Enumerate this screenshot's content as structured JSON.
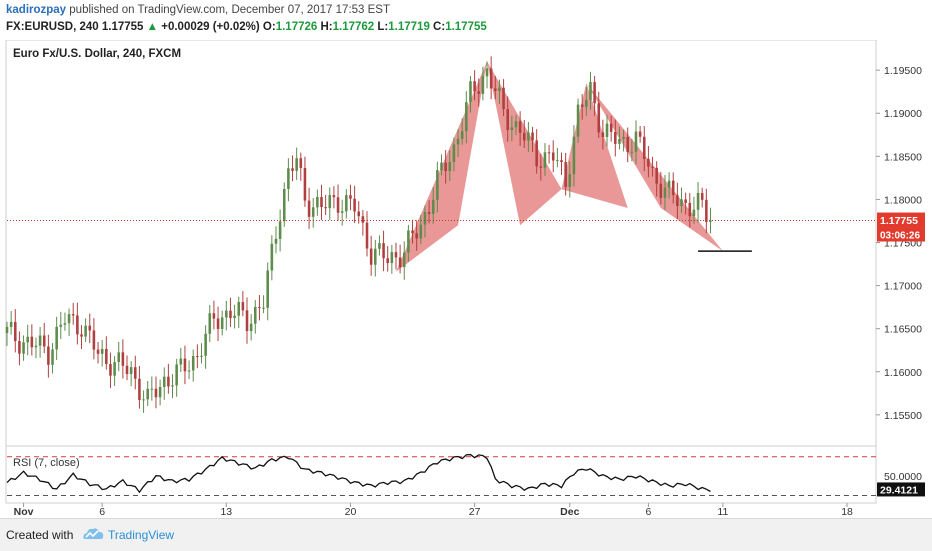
{
  "header": {
    "user": "kadirozpay",
    "published_text": "published on TradingView.com, December 07, 2017 17:53 EST",
    "symbol": "FX:EURUSD, 240",
    "last": "1.17755",
    "change_arrow": "▲",
    "change": "+0.00029 (+0.02%)",
    "o_label": "O:",
    "o": "1.17726",
    "h_label": "H:",
    "h": "1.17762",
    "l_label": "L:",
    "l": "1.17719",
    "c_label": "C:",
    "c": "1.17755"
  },
  "footer": {
    "created_with": "Created with",
    "brand": "TradingView",
    "logo_icon": "tradingview-cloud-icon"
  },
  "colors": {
    "up": "#5d8c4c",
    "down": "#b0403f",
    "pattern_fill": "#e58585",
    "price_line": "#c0392b",
    "rsi_line": "#111111",
    "rsi_band": "#d33c3c",
    "label_red": "#e23b2e"
  },
  "chart_data": {
    "type": "candlestick",
    "title": "Euro Fx/U.S. Dollar, 240, FXCM",
    "y_ticks": [
      "1.19500",
      "1.19000",
      "1.18500",
      "1.18000",
      "1.17500",
      "1.17000",
      "1.16500",
      "1.16000",
      "1.15500"
    ],
    "y_tick_values": [
      1.195,
      1.19,
      1.185,
      1.18,
      1.175,
      1.17,
      1.165,
      1.16,
      1.155
    ],
    "ylim": [
      1.1515,
      1.1985
    ],
    "x_ticks": [
      {
        "label": "Nov",
        "index": 4
      },
      {
        "label": "6",
        "index": 23
      },
      {
        "label": "13",
        "index": 53
      },
      {
        "label": "20",
        "index": 83
      },
      {
        "label": "27",
        "index": 113
      },
      {
        "label": "Dec",
        "index": 136
      },
      {
        "label": "6",
        "index": 155
      },
      {
        "label": "11",
        "index": 173
      },
      {
        "label": "18",
        "index": 203
      }
    ],
    "xlim": [
      0,
      210
    ],
    "current_price": {
      "value": 1.17755,
      "label": "1.17755",
      "countdown": "03:06:26"
    },
    "target_line": {
      "value": 1.174,
      "from_index": 167,
      "to_index": 180
    },
    "harmonic_pattern": {
      "legs": [
        [
          {
            "i": 94,
            "p": 1.1716
          },
          {
            "i": 116,
            "p": 1.196
          },
          {
            "i": 109,
            "p": 1.177
          }
        ],
        [
          {
            "i": 116,
            "p": 1.196
          },
          {
            "i": 134,
            "p": 1.1812
          },
          {
            "i": 124,
            "p": 1.177
          }
        ],
        [
          {
            "i": 134,
            "p": 1.1812
          },
          {
            "i": 140,
            "p": 1.1935
          },
          {
            "i": 150,
            "p": 1.179
          }
        ],
        [
          {
            "i": 140,
            "p": 1.1935
          },
          {
            "i": 173,
            "p": 1.174
          },
          {
            "i": 158,
            "p": 1.179
          }
        ]
      ]
    },
    "anchors": [
      [
        0,
        1.1645
      ],
      [
        4,
        1.1635
      ],
      [
        10,
        1.1625
      ],
      [
        14,
        1.166
      ],
      [
        18,
        1.1655
      ],
      [
        22,
        1.162
      ],
      [
        26,
        1.161
      ],
      [
        30,
        1.16
      ],
      [
        34,
        1.1565
      ],
      [
        38,
        1.159
      ],
      [
        42,
        1.16
      ],
      [
        46,
        1.162
      ],
      [
        50,
        1.166
      ],
      [
        54,
        1.167
      ],
      [
        58,
        1.166
      ],
      [
        62,
        1.168
      ],
      [
        66,
        1.179
      ],
      [
        68,
        1.183
      ],
      [
        70,
        1.1845
      ],
      [
        72,
        1.18
      ],
      [
        76,
        1.179
      ],
      [
        80,
        1.18
      ],
      [
        84,
        1.179
      ],
      [
        88,
        1.174
      ],
      [
        92,
        1.173
      ],
      [
        96,
        1.174
      ],
      [
        100,
        1.177
      ],
      [
        104,
        1.182
      ],
      [
        108,
        1.186
      ],
      [
        112,
        1.192
      ],
      [
        116,
        1.195
      ],
      [
        120,
        1.19
      ],
      [
        124,
        1.188
      ],
      [
        128,
        1.185
      ],
      [
        132,
        1.185
      ],
      [
        135,
        1.182
      ],
      [
        138,
        1.19
      ],
      [
        141,
        1.1925
      ],
      [
        144,
        1.188
      ],
      [
        148,
        1.1865
      ],
      [
        152,
        1.187
      ],
      [
        156,
        1.183
      ],
      [
        160,
        1.1805
      ],
      [
        164,
        1.1795
      ],
      [
        168,
        1.179
      ],
      [
        170,
        1.1776
      ]
    ],
    "rsi": {
      "label": "RSI (7, close)",
      "ylim": [
        10,
        95
      ],
      "upper_band": 80,
      "lower_band": 20,
      "right_labels": [
        {
          "text": "50.0000",
          "value": 50
        }
      ],
      "current": {
        "value": 29.4121,
        "label": "29.4121"
      },
      "anchors": [
        [
          0,
          40
        ],
        [
          4,
          55
        ],
        [
          8,
          45
        ],
        [
          12,
          30
        ],
        [
          16,
          52
        ],
        [
          20,
          38
        ],
        [
          24,
          30
        ],
        [
          28,
          42
        ],
        [
          32,
          28
        ],
        [
          36,
          50
        ],
        [
          40,
          42
        ],
        [
          44,
          45
        ],
        [
          48,
          60
        ],
        [
          52,
          78
        ],
        [
          56,
          70
        ],
        [
          60,
          62
        ],
        [
          64,
          75
        ],
        [
          68,
          80
        ],
        [
          72,
          60
        ],
        [
          76,
          55
        ],
        [
          80,
          48
        ],
        [
          84,
          40
        ],
        [
          88,
          35
        ],
        [
          92,
          40
        ],
        [
          96,
          42
        ],
        [
          100,
          55
        ],
        [
          104,
          72
        ],
        [
          108,
          78
        ],
        [
          112,
          82
        ],
        [
          116,
          80
        ],
        [
          118,
          45
        ],
        [
          122,
          35
        ],
        [
          126,
          30
        ],
        [
          130,
          38
        ],
        [
          134,
          35
        ],
        [
          137,
          55
        ],
        [
          140,
          62
        ],
        [
          144,
          50
        ],
        [
          148,
          45
        ],
        [
          152,
          50
        ],
        [
          156,
          42
        ],
        [
          160,
          35
        ],
        [
          164,
          38
        ],
        [
          168,
          30
        ],
        [
          170,
          29
        ]
      ]
    }
  }
}
